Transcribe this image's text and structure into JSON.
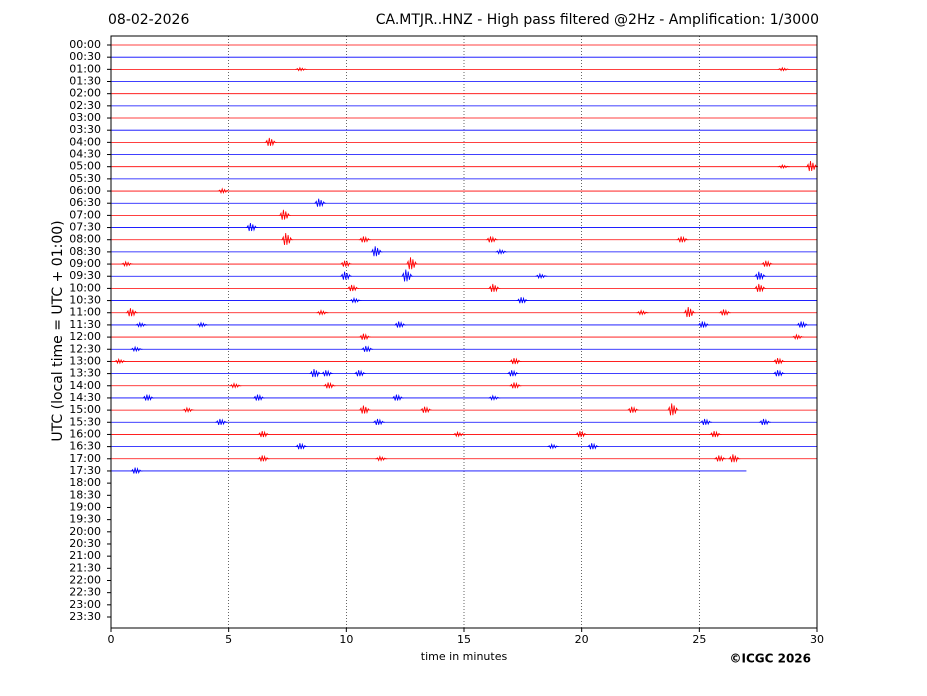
{
  "chart_data": {
    "type": "helicorder",
    "date": "08-02-2026",
    "title": "CA.MTJR..HNZ - High pass filtered @2Hz - Amplification: 1/3000",
    "ylabel": "UTC (local time = UTC + 01:00)",
    "xlabel": "time in minutes",
    "credit": "©ICGC 2026",
    "xlim": [
      0,
      30
    ],
    "xticks": [
      0,
      5,
      10,
      15,
      20,
      25,
      30
    ],
    "xgrid": true,
    "rows": [
      "00:00",
      "00:30",
      "01:00",
      "01:30",
      "02:00",
      "02:30",
      "03:00",
      "03:30",
      "04:00",
      "04:30",
      "05:00",
      "05:30",
      "06:00",
      "06:30",
      "07:00",
      "07:30",
      "08:00",
      "08:30",
      "09:00",
      "09:30",
      "10:00",
      "10:30",
      "11:00",
      "11:30",
      "12:00",
      "12:30",
      "13:00",
      "13:30",
      "14:00",
      "14:30",
      "15:00",
      "15:30",
      "16:00",
      "16:30",
      "17:00",
      "17:30",
      "18:00",
      "18:30",
      "19:00",
      "19:30",
      "20:00",
      "20:30",
      "21:00",
      "21:30",
      "22:00",
      "22:30",
      "23:00",
      "23:30"
    ],
    "traces": [
      {
        "color": "#ff0000",
        "end": 30,
        "spikes": []
      },
      {
        "color": "#0000ff",
        "end": 30,
        "spikes": []
      },
      {
        "color": "#ff0000",
        "end": 30,
        "spikes": [
          [
            8.0,
            0.15
          ],
          [
            28.5,
            0.15
          ]
        ]
      },
      {
        "color": "#0000ff",
        "end": 30,
        "spikes": []
      },
      {
        "color": "#ff0000",
        "end": 30,
        "spikes": []
      },
      {
        "color": "#0000ff",
        "end": 30,
        "spikes": []
      },
      {
        "color": "#ff0000",
        "end": 30,
        "spikes": []
      },
      {
        "color": "#0000ff",
        "end": 30,
        "spikes": []
      },
      {
        "color": "#ff0000",
        "end": 30,
        "spikes": [
          [
            6.7,
            0.4
          ]
        ]
      },
      {
        "color": "#0000ff",
        "end": 30,
        "spikes": []
      },
      {
        "color": "#ff0000",
        "end": 30,
        "spikes": [
          [
            28.5,
            0.15
          ],
          [
            29.7,
            0.5
          ]
        ]
      },
      {
        "color": "#0000ff",
        "end": 30,
        "spikes": []
      },
      {
        "color": "#ff0000",
        "end": 30,
        "spikes": [
          [
            4.7,
            0.2
          ]
        ]
      },
      {
        "color": "#0000ff",
        "end": 30,
        "spikes": [
          [
            8.8,
            0.4
          ]
        ]
      },
      {
        "color": "#ff0000",
        "end": 30,
        "spikes": [
          [
            7.3,
            0.5
          ]
        ]
      },
      {
        "color": "#0000ff",
        "end": 30,
        "spikes": [
          [
            5.9,
            0.4
          ]
        ]
      },
      {
        "color": "#ff0000",
        "end": 30,
        "spikes": [
          [
            7.4,
            0.6
          ],
          [
            10.7,
            0.3
          ],
          [
            16.1,
            0.3
          ],
          [
            24.2,
            0.3
          ]
        ]
      },
      {
        "color": "#0000ff",
        "end": 30,
        "spikes": [
          [
            11.2,
            0.5
          ],
          [
            16.5,
            0.2
          ]
        ]
      },
      {
        "color": "#ff0000",
        "end": 30,
        "spikes": [
          [
            0.6,
            0.2
          ],
          [
            9.9,
            0.3
          ],
          [
            12.7,
            0.6
          ],
          [
            27.8,
            0.3
          ]
        ]
      },
      {
        "color": "#0000ff",
        "end": 30,
        "spikes": [
          [
            9.9,
            0.4
          ],
          [
            12.5,
            0.6
          ],
          [
            18.2,
            0.2
          ],
          [
            27.5,
            0.4
          ]
        ]
      },
      {
        "color": "#ff0000",
        "end": 30,
        "spikes": [
          [
            10.2,
            0.3
          ],
          [
            16.2,
            0.4
          ],
          [
            27.5,
            0.4
          ]
        ]
      },
      {
        "color": "#0000ff",
        "end": 30,
        "spikes": [
          [
            10.3,
            0.2
          ],
          [
            17.4,
            0.3
          ]
        ]
      },
      {
        "color": "#ff0000",
        "end": 30,
        "spikes": [
          [
            0.8,
            0.4
          ],
          [
            8.9,
            0.2
          ],
          [
            22.5,
            0.2
          ],
          [
            24.5,
            0.5
          ],
          [
            26.0,
            0.3
          ]
        ]
      },
      {
        "color": "#0000ff",
        "end": 30,
        "spikes": [
          [
            1.2,
            0.2
          ],
          [
            3.8,
            0.2
          ],
          [
            12.2,
            0.3
          ],
          [
            25.1,
            0.3
          ],
          [
            29.3,
            0.3
          ]
        ]
      },
      {
        "color": "#ff0000",
        "end": 30,
        "spikes": [
          [
            10.7,
            0.3
          ],
          [
            29.1,
            0.2
          ]
        ]
      },
      {
        "color": "#0000ff",
        "end": 30,
        "spikes": [
          [
            1.0,
            0.2
          ],
          [
            10.8,
            0.3
          ]
        ]
      },
      {
        "color": "#ff0000",
        "end": 30,
        "spikes": [
          [
            0.3,
            0.2
          ],
          [
            17.1,
            0.3
          ],
          [
            28.3,
            0.3
          ]
        ]
      },
      {
        "color": "#0000ff",
        "end": 30,
        "spikes": [
          [
            8.6,
            0.4
          ],
          [
            9.1,
            0.3
          ],
          [
            10.5,
            0.3
          ],
          [
            17.0,
            0.3
          ],
          [
            28.3,
            0.3
          ]
        ]
      },
      {
        "color": "#ff0000",
        "end": 30,
        "spikes": [
          [
            5.2,
            0.2
          ],
          [
            9.2,
            0.3
          ],
          [
            17.1,
            0.3
          ]
        ]
      },
      {
        "color": "#0000ff",
        "end": 30,
        "spikes": [
          [
            1.5,
            0.3
          ],
          [
            6.2,
            0.3
          ],
          [
            12.1,
            0.3
          ],
          [
            16.2,
            0.2
          ]
        ]
      },
      {
        "color": "#ff0000",
        "end": 30,
        "spikes": [
          [
            3.2,
            0.2
          ],
          [
            10.7,
            0.4
          ],
          [
            13.3,
            0.3
          ],
          [
            22.1,
            0.3
          ],
          [
            23.8,
            0.6
          ]
        ]
      },
      {
        "color": "#0000ff",
        "end": 30,
        "spikes": [
          [
            4.6,
            0.3
          ],
          [
            11.3,
            0.3
          ],
          [
            25.2,
            0.3
          ],
          [
            27.7,
            0.3
          ]
        ]
      },
      {
        "color": "#ff0000",
        "end": 30,
        "spikes": [
          [
            6.4,
            0.3
          ],
          [
            14.7,
            0.2
          ],
          [
            19.9,
            0.3
          ],
          [
            25.6,
            0.3
          ]
        ]
      },
      {
        "color": "#0000ff",
        "end": 30,
        "spikes": [
          [
            8.0,
            0.3
          ],
          [
            18.7,
            0.2
          ],
          [
            20.4,
            0.3
          ]
        ]
      },
      {
        "color": "#ff0000",
        "end": 30,
        "spikes": [
          [
            6.4,
            0.3
          ],
          [
            11.4,
            0.2
          ],
          [
            25.8,
            0.3
          ],
          [
            26.4,
            0.4
          ]
        ]
      },
      {
        "color": "#0000ff",
        "end": 27.0,
        "spikes": [
          [
            1.0,
            0.3
          ]
        ]
      }
    ]
  }
}
